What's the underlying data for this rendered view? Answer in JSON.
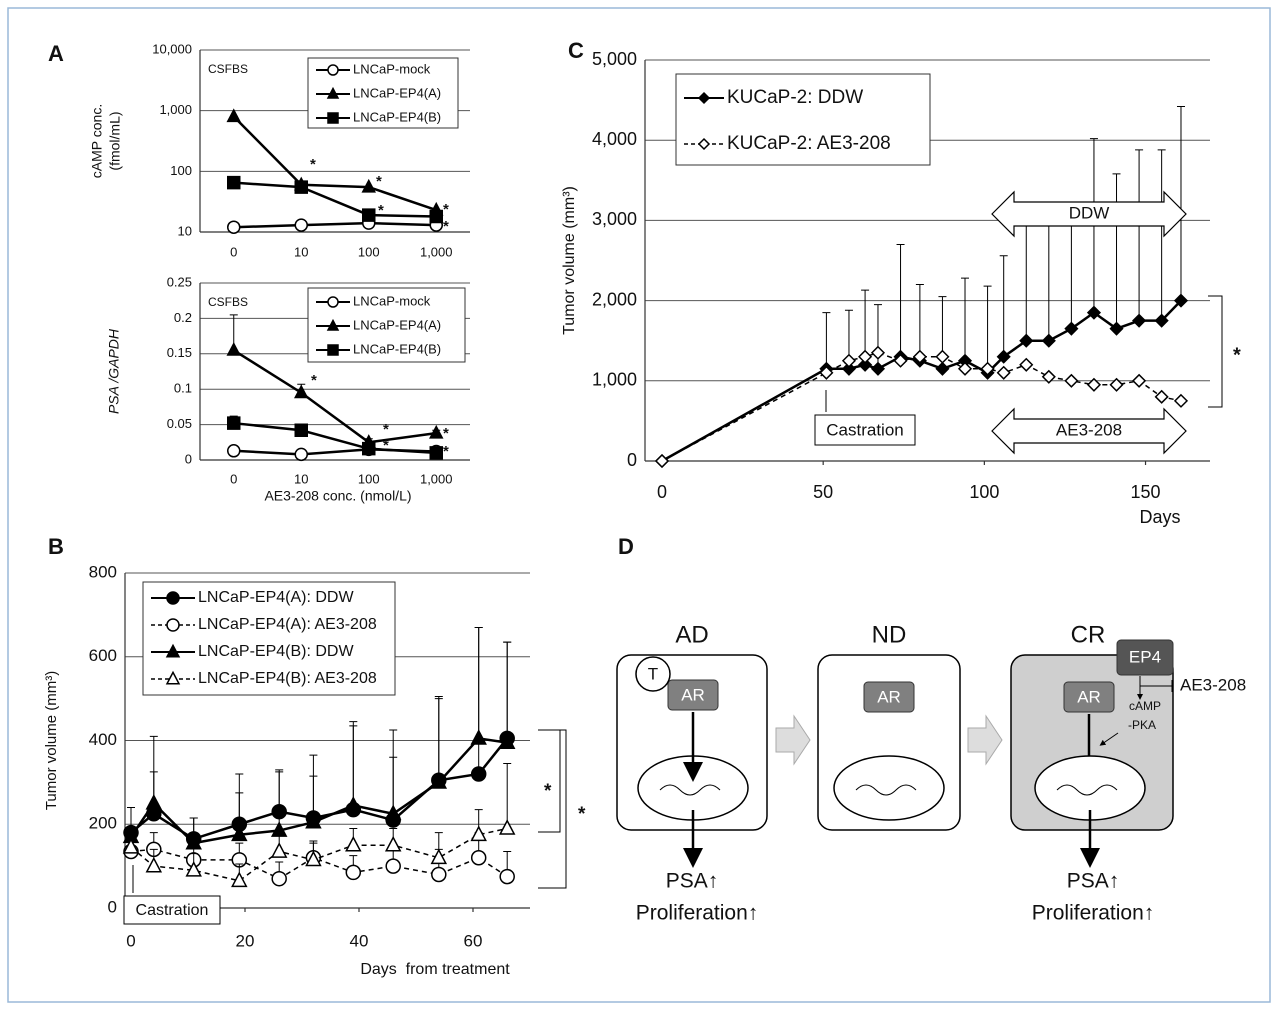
{
  "panels": [
    "A",
    "B",
    "C",
    "D"
  ],
  "chart_data": [
    {
      "type": "line",
      "condition": "CSFBS",
      "ylabel": [
        "cAMP conc.",
        "(fmol/mL)"
      ],
      "log_y": true,
      "grid": true,
      "categories": [
        "0",
        "10",
        "100",
        "1,000"
      ],
      "ylim": [
        10,
        10000
      ],
      "yticks": [
        10,
        100,
        {
          "value": 1000,
          "label": "1,000"
        },
        {
          "value": 10000,
          "label": "10,000"
        }
      ],
      "significance": "*",
      "series": [
        {
          "name": "LNCaP-mock",
          "color": "#000000",
          "marker": "circle",
          "filled": false,
          "values": [
            12,
            13,
            14,
            13
          ]
        },
        {
          "name": "LNCaP-EP4(A)",
          "color": "#000000",
          "marker": "triangle",
          "filled": true,
          "values": [
            800,
            60,
            55,
            23
          ]
        },
        {
          "name": "LNCaP-EP4(B)",
          "color": "#000000",
          "marker": "square",
          "filled": true,
          "values": [
            65,
            55,
            19,
            18
          ]
        }
      ]
    },
    {
      "type": "line",
      "condition": "CSFBS",
      "ylabel": "PSA /GAPDH",
      "xlabel": "AE3-208 conc. (nmol/L)",
      "grid": true,
      "categories": [
        "0",
        "10",
        "100",
        "1,000"
      ],
      "ylim": [
        0,
        0.25
      ],
      "yticks": [
        0,
        0.05,
        0.1,
        0.15,
        0.2,
        0.25
      ],
      "significance": "*",
      "series": [
        {
          "name": "LNCaP-mock",
          "color": "#000000",
          "marker": "circle",
          "filled": false,
          "values": [
            0.013,
            0.008,
            0.015,
            0.012
          ]
        },
        {
          "name": "LNCaP-EP4(A)",
          "color": "#000000",
          "marker": "triangle",
          "filled": true,
          "values": [
            0.155,
            0.095,
            0.025,
            0.038
          ],
          "errors": [
            0.05,
            0.012,
            0.005,
            0.004
          ]
        },
        {
          "name": "LNCaP-EP4(B)",
          "color": "#000000",
          "marker": "square",
          "filled": true,
          "values": [
            0.052,
            0.042,
            0.016,
            0.01
          ],
          "errors": [
            0.01,
            0.004,
            0.003,
            0.003
          ]
        }
      ]
    },
    {
      "type": "line",
      "ylabel": "Tumor volume (mm³)",
      "xlabel": "Days  from treatment",
      "event": "Castration",
      "grid": true,
      "x": [
        0,
        4,
        11,
        19,
        26,
        32,
        39,
        46,
        54,
        61,
        66
      ],
      "xlim": [
        0,
        70
      ],
      "xticks": [
        0,
        20,
        40,
        60
      ],
      "ylim": [
        0,
        800
      ],
      "yticks": [
        0,
        200,
        400,
        600,
        800
      ],
      "significance": "*",
      "series": [
        {
          "name": "LNCaP-EP4(A): DDW",
          "color": "#000000",
          "marker": "circle",
          "filled": true,
          "dash": false,
          "values": [
            180,
            225,
            165,
            200,
            230,
            215,
            235,
            210,
            305,
            320,
            405
          ],
          "errors": [
            60,
            100,
            50,
            120,
            100,
            100,
            200,
            150,
            200,
            350,
            230
          ]
        },
        {
          "name": "LNCaP-EP4(A): AE3-208",
          "color": "#000000",
          "marker": "circle",
          "filled": false,
          "dash": true,
          "values": [
            135,
            140,
            115,
            115,
            70,
            120,
            85,
            100,
            80,
            120,
            75
          ],
          "errors": [
            40,
            40,
            40,
            40,
            40,
            40,
            40,
            40,
            60,
            60,
            60
          ]
        },
        {
          "name": "LNCaP-EP4(B): DDW",
          "color": "#000000",
          "marker": "triangle",
          "filled": true,
          "dash": false,
          "values": [
            170,
            250,
            155,
            175,
            185,
            205,
            245,
            225,
            300,
            405,
            395
          ],
          "errors": [
            70,
            160,
            60,
            100,
            140,
            160,
            200,
            200,
            200,
            265,
            240
          ]
        },
        {
          "name": "LNCaP-EP4(B): AE3-208",
          "color": "#000000",
          "marker": "triangle",
          "filled": false,
          "dash": true,
          "values": [
            145,
            100,
            90,
            65,
            135,
            115,
            150,
            150,
            120,
            175,
            190
          ],
          "errors": [
            40,
            40,
            40,
            40,
            40,
            40,
            40,
            40,
            60,
            60,
            155
          ]
        }
      ]
    },
    {
      "type": "line",
      "ylabel": "Tumor volume (mm³)",
      "xlabel": "Days",
      "event": "Castration",
      "phases": [
        "DDW",
        "AE3-208"
      ],
      "grid": true,
      "x": [
        0,
        51,
        58,
        63,
        67,
        74,
        80,
        87,
        94,
        101,
        106,
        113,
        120,
        127,
        134,
        141,
        148,
        155,
        161
      ],
      "xlim": [
        0,
        170
      ],
      "xticks": [
        0,
        50,
        100,
        150
      ],
      "ylim": [
        0,
        5000
      ],
      "yticks": [
        0,
        {
          "value": 1000,
          "label": "1,000"
        },
        {
          "value": 2000,
          "label": "2,000"
        },
        {
          "value": 3000,
          "label": "3,000"
        },
        {
          "value": 4000,
          "label": "4,000"
        },
        {
          "value": 5000,
          "label": "5,000"
        }
      ],
      "significance": "*",
      "series": [
        {
          "name": "KUCaP-2: DDW",
          "color": "#000000",
          "marker": "diamond",
          "filled": true,
          "dash": false,
          "values": [
            0,
            1150,
            1150,
            1200,
            1150,
            1300,
            1250,
            1150,
            1250,
            1100,
            1300,
            1500,
            1500,
            1650,
            1850,
            1650,
            1750,
            1750,
            2000
          ],
          "errors": [
            0,
            700,
            730,
            930,
            800,
            1400,
            950,
            900,
            1030,
            1080,
            1260,
            1500,
            1600,
            1350,
            2170,
            1930,
            2130,
            2130,
            2420
          ]
        },
        {
          "name": "KUCaP-2: AE3-208",
          "color": "#000000",
          "marker": "diamond",
          "filled": false,
          "dash": true,
          "values": [
            0,
            1100,
            1250,
            1300,
            1350,
            1250,
            1300,
            1300,
            1150,
            1150,
            1100,
            1200,
            1050,
            1000,
            950,
            950,
            1000,
            800,
            750
          ]
        }
      ]
    }
  ],
  "diagram": {
    "stages": [
      "AD",
      "ND",
      "CR"
    ],
    "testosterone": "T",
    "receptor": "AR",
    "ep4": "EP4",
    "inhibitor": "AE3-208",
    "signal": [
      "cAMP",
      "-PKA"
    ],
    "outputs": [
      "PSA↑",
      "Proliferation↑"
    ]
  }
}
